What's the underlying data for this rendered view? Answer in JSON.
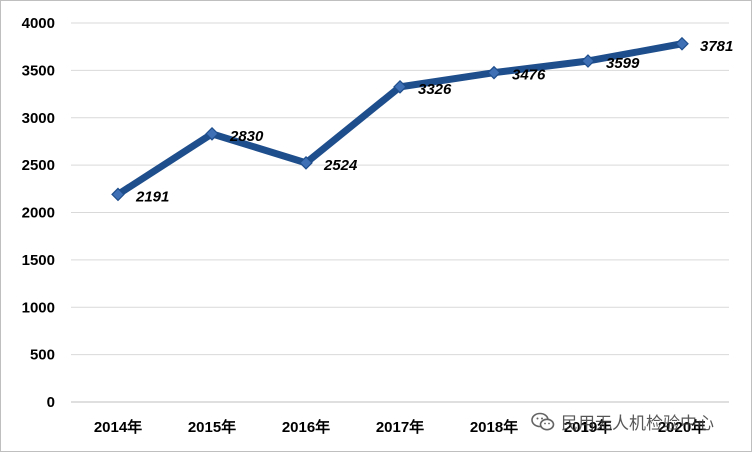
{
  "chart_data": {
    "type": "line",
    "categories": [
      "2014年",
      "2015年",
      "2016年",
      "2017年",
      "2018年",
      "2019年",
      "2020年"
    ],
    "series": [
      {
        "values": [
          2191,
          2830,
          2524,
          3326,
          3476,
          3599,
          3781
        ]
      }
    ],
    "data_labels": [
      "2191",
      "2830",
      "2524",
      "3326",
      "3476",
      "3599",
      "3781"
    ],
    "y_ticks": [
      "0",
      "500",
      "1000",
      "1500",
      "2000",
      "2500",
      "3000",
      "3500",
      "4000"
    ],
    "ylim": [
      0,
      4000
    ],
    "grid": true,
    "legend": "none",
    "colors": {
      "line": "#1f4e8c",
      "marker": "#3f6fb5",
      "grid": "#d9d9d9",
      "axis": "#bfbfbf"
    }
  },
  "watermark": {
    "text": "民用无人机检验中心",
    "icon": "wechat-icon"
  }
}
